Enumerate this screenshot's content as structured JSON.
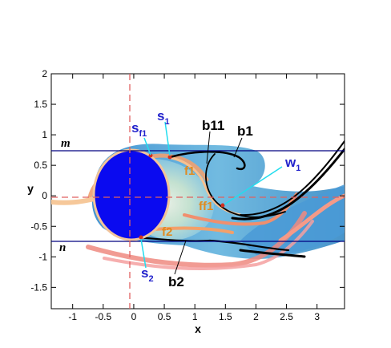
{
  "chart_data": {
    "type": "contour",
    "xlabel": "x",
    "ylabel": "y",
    "xlim": [
      -1.35,
      3.45
    ],
    "ylim": [
      -1.85,
      2.0
    ],
    "x_ticks": [
      "-1",
      "-0.5",
      "0",
      "0.5",
      "1",
      "1.5",
      "2",
      "2.5",
      "3"
    ],
    "y_ticks": [
      "2",
      "1.5",
      "1",
      "0.5",
      "0",
      "-0.5",
      "-1",
      "-1.5"
    ],
    "reference_lines": {
      "m_y": 0.75,
      "n_y": -0.72,
      "center_x": -0.02,
      "center_y": 0.0
    },
    "annotations": {
      "m": "m",
      "n": "n",
      "sf1_main": "s",
      "sf1_sub": "f1",
      "s1_main": "s",
      "s1_sub": "1",
      "s2_main": "s",
      "s2_sub": "2",
      "w1_main": "w",
      "w1_sub": "1",
      "b1": "b1",
      "b11": "b11",
      "b2": "b2",
      "f1": "f1",
      "ff1": "ff1",
      "f2": "f2"
    },
    "colors": {
      "cylinder": "#0a0af0",
      "ref_line_blue": "#000080",
      "ref_line_red": "#e06060",
      "label_blue": "#2222cc",
      "label_orange": "#e08a1e",
      "pointer_cyan": "#22ddee"
    }
  }
}
